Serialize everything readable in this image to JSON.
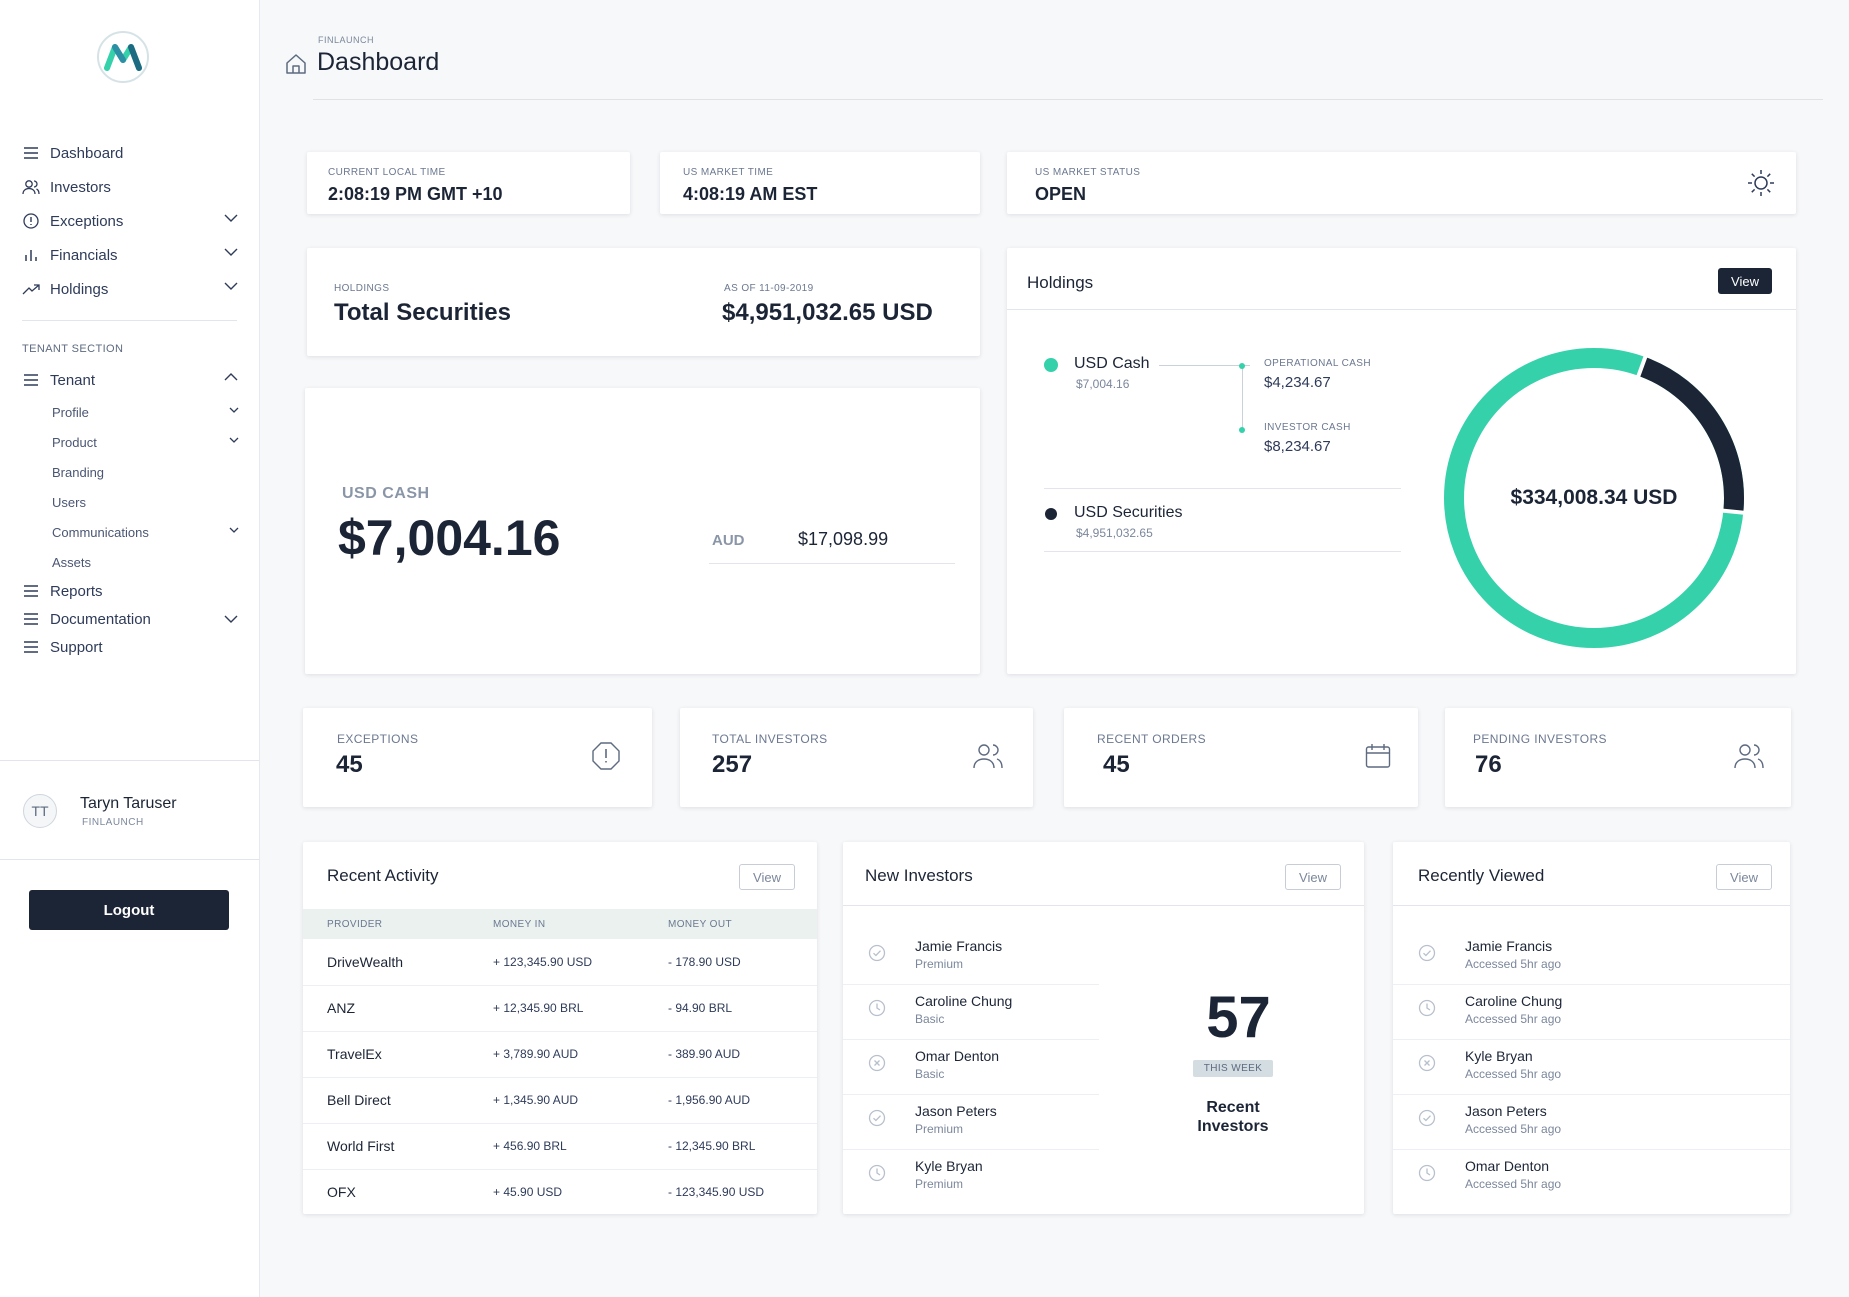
{
  "sidebar": {
    "nav": [
      {
        "label": "Dashboard",
        "icon": "menu-icon"
      },
      {
        "label": "Investors",
        "icon": "users-icon"
      },
      {
        "label": "Exceptions",
        "icon": "alert-circle-icon"
      },
      {
        "label": "Financials",
        "icon": "bar-chart-icon"
      },
      {
        "label": "Holdings",
        "icon": "trending-up-icon"
      }
    ],
    "section_label": "TENANT SECTION",
    "tenant": {
      "label": "Tenant",
      "items": [
        "Profile",
        "Product",
        "Branding",
        "Users",
        "Communications",
        "Assets"
      ]
    },
    "bottom_nav": [
      "Reports",
      "Documentation",
      "Support"
    ],
    "user": {
      "initials": "TT",
      "name": "Taryn Taruser",
      "org": "FINLAUNCH"
    },
    "logout_label": "Logout"
  },
  "header": {
    "crumb": "FINLAUNCH",
    "title": "Dashboard"
  },
  "time_cards": [
    {
      "label": "CURRENT LOCAL TIME",
      "value": "2:08:19 PM GMT +10"
    },
    {
      "label": "US MARKET TIME",
      "value": "4:08:19 AM EST"
    },
    {
      "label": "US MARKET STATUS",
      "value": "OPEN"
    }
  ],
  "total_securities": {
    "label": "HOLDINGS",
    "title": "Total Securities",
    "date_label": "AS OF 11-09-2019",
    "amount": "$4,951,032.65 USD"
  },
  "usd_cash": {
    "label": "USD CASH",
    "amount": "$7,004.16",
    "aud_label": "AUD",
    "aud_value": "$17,098.99"
  },
  "holdings": {
    "title": "Holdings",
    "view_label": "View",
    "usd_cash_label": "USD Cash",
    "usd_cash_value": "$7,004.16",
    "operational_label": "OPERATIONAL CASH",
    "operational_value": "$4,234.67",
    "investor_label": "INVESTOR CASH",
    "investor_value": "$8,234.67",
    "securities_label": "USD Securities",
    "securities_value": "$4,951,032.65",
    "donut_total": "$334,008.34 USD",
    "donut_dark_fraction": 0.21,
    "colors": {
      "cash": "#34d1aa",
      "securities": "#1c2536"
    }
  },
  "stats": [
    {
      "label": "EXCEPTIONS",
      "value": "45",
      "icon": "alert-octagon-icon"
    },
    {
      "label": "TOTAL INVESTORS",
      "value": "257",
      "icon": "users-icon"
    },
    {
      "label": "RECENT ORDERS",
      "value": "45",
      "icon": "calendar-icon"
    },
    {
      "label": "PENDING INVESTORS",
      "value": "76",
      "icon": "users-icon"
    }
  ],
  "recent_activity": {
    "title": "Recent Activity",
    "view_label": "View",
    "columns": [
      "PROVIDER",
      "MONEY IN",
      "MONEY OUT"
    ],
    "rows": [
      [
        "DriveWealth",
        "+ 123,345.90  USD",
        "- 178.90  USD"
      ],
      [
        "ANZ",
        "+ 12,345.90  BRL",
        "- 94.90  BRL"
      ],
      [
        "TravelEx",
        "+ 3,789.90  AUD",
        "- 389.90  AUD"
      ],
      [
        "Bell Direct",
        "+ 1,345.90  AUD",
        "- 1,956.90  AUD"
      ],
      [
        "World First",
        "+ 456.90  BRL",
        "- 12,345.90  BRL"
      ],
      [
        "OFX",
        "+ 45.90  USD",
        "- 123,345.90  USD"
      ]
    ]
  },
  "new_investors": {
    "title": "New Investors",
    "view_label": "View",
    "rows": [
      {
        "name": "Jamie Francis",
        "sub": "Premium",
        "icon": "check-circle-icon"
      },
      {
        "name": "Caroline Chung",
        "sub": "Basic",
        "icon": "clock-icon"
      },
      {
        "name": "Omar Denton",
        "sub": "Basic",
        "icon": "x-circle-icon"
      },
      {
        "name": "Jason Peters",
        "sub": "Premium",
        "icon": "check-circle-icon"
      },
      {
        "name": "Kyle Bryan",
        "sub": "Premium",
        "icon": "clock-icon"
      }
    ],
    "count": "57",
    "badge": "THIS WEEK",
    "caption": "Recent Investors"
  },
  "recently_viewed": {
    "title": "Recently Viewed",
    "view_label": "View",
    "rows": [
      {
        "name": "Jamie Francis",
        "sub": "Accessed 5hr ago",
        "icon": "check-circle-icon"
      },
      {
        "name": "Caroline Chung",
        "sub": "Accessed 5hr ago",
        "icon": "clock-icon"
      },
      {
        "name": "Kyle Bryan",
        "sub": "Accessed 5hr ago",
        "icon": "x-circle-icon"
      },
      {
        "name": "Jason Peters",
        "sub": "Accessed 5hr ago",
        "icon": "check-circle-icon"
      },
      {
        "name": "Omar Denton",
        "sub": "Accessed 5hr ago",
        "icon": "clock-icon"
      }
    ]
  }
}
